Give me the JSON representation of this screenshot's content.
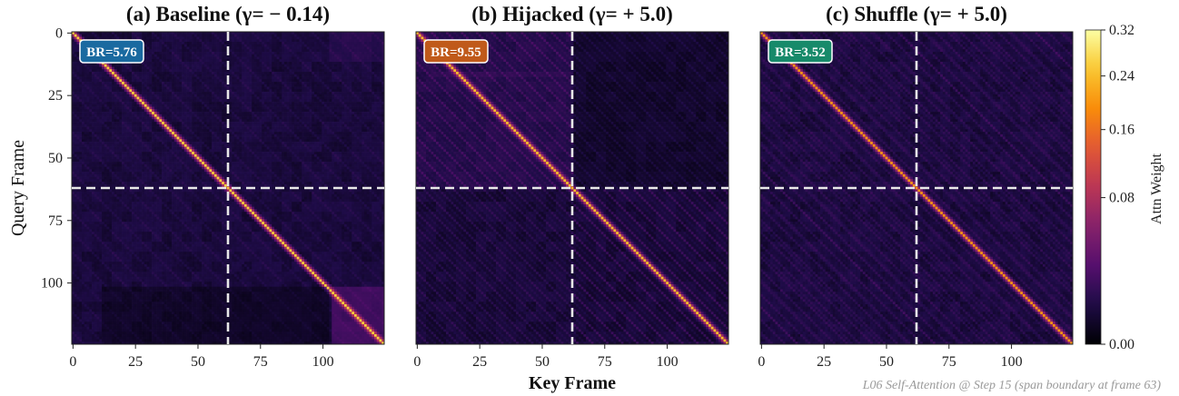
{
  "figure": {
    "xlabel": "Key Frame",
    "ylabel": "Query Frame",
    "footnote": "L06 Self-Attention @ Step 15  (span boundary at frame 63)"
  },
  "colorbar": {
    "label": "Attn Weight",
    "ticks": [
      "0.32",
      "0.24",
      "0.16",
      "0.08",
      "0.00"
    ],
    "tick_values": [
      0.32,
      0.24,
      0.16,
      0.08,
      0.0
    ],
    "range": [
      0.0,
      0.32
    ],
    "colormap": "inferno"
  },
  "chart_data": [
    {
      "type": "heatmap",
      "title": "(a)  Baseline (γ= − 0.14)",
      "badge": "BR=5.76",
      "badge_color": "#1a6aa0",
      "matrix_size": 125,
      "boundary": 63,
      "xticks": [
        "0",
        "25",
        "50",
        "75",
        "100"
      ],
      "yticks": [
        "0",
        "25",
        "50",
        "75",
        "100"
      ],
      "tick_values": [
        0,
        25,
        50,
        75,
        100
      ],
      "diag_weight": 0.26,
      "offdiag_bands": "weak",
      "dark_block": {
        "rows": [
          102,
          124
        ],
        "cols": [
          12,
          102
        ]
      },
      "bright_block": {
        "rows": [
          102,
          124
        ],
        "cols": [
          104,
          124
        ]
      }
    },
    {
      "type": "heatmap",
      "title": "(b)  Hijacked (γ= + 5.0)",
      "badge": "BR=9.55",
      "badge_color": "#c05a1a",
      "matrix_size": 125,
      "boundary": 63,
      "xticks": [
        "0",
        "25",
        "50",
        "75",
        "100"
      ],
      "yticks": [],
      "tick_values": [
        0,
        25,
        50,
        75,
        100
      ],
      "diag_weight": 0.24,
      "offdiag_bands": "strong-in-span"
    },
    {
      "type": "heatmap",
      "title": "(c)  Shuffle (γ= + 5.0)",
      "badge": "BR=3.52",
      "badge_color": "#178a6a",
      "matrix_size": 125,
      "boundary": 63,
      "xticks": [
        "0",
        "25",
        "50",
        "75",
        "100"
      ],
      "yticks": [],
      "tick_values": [
        0,
        25,
        50,
        75,
        100
      ],
      "diag_weight": 0.2,
      "offdiag_bands": "uniform"
    }
  ]
}
